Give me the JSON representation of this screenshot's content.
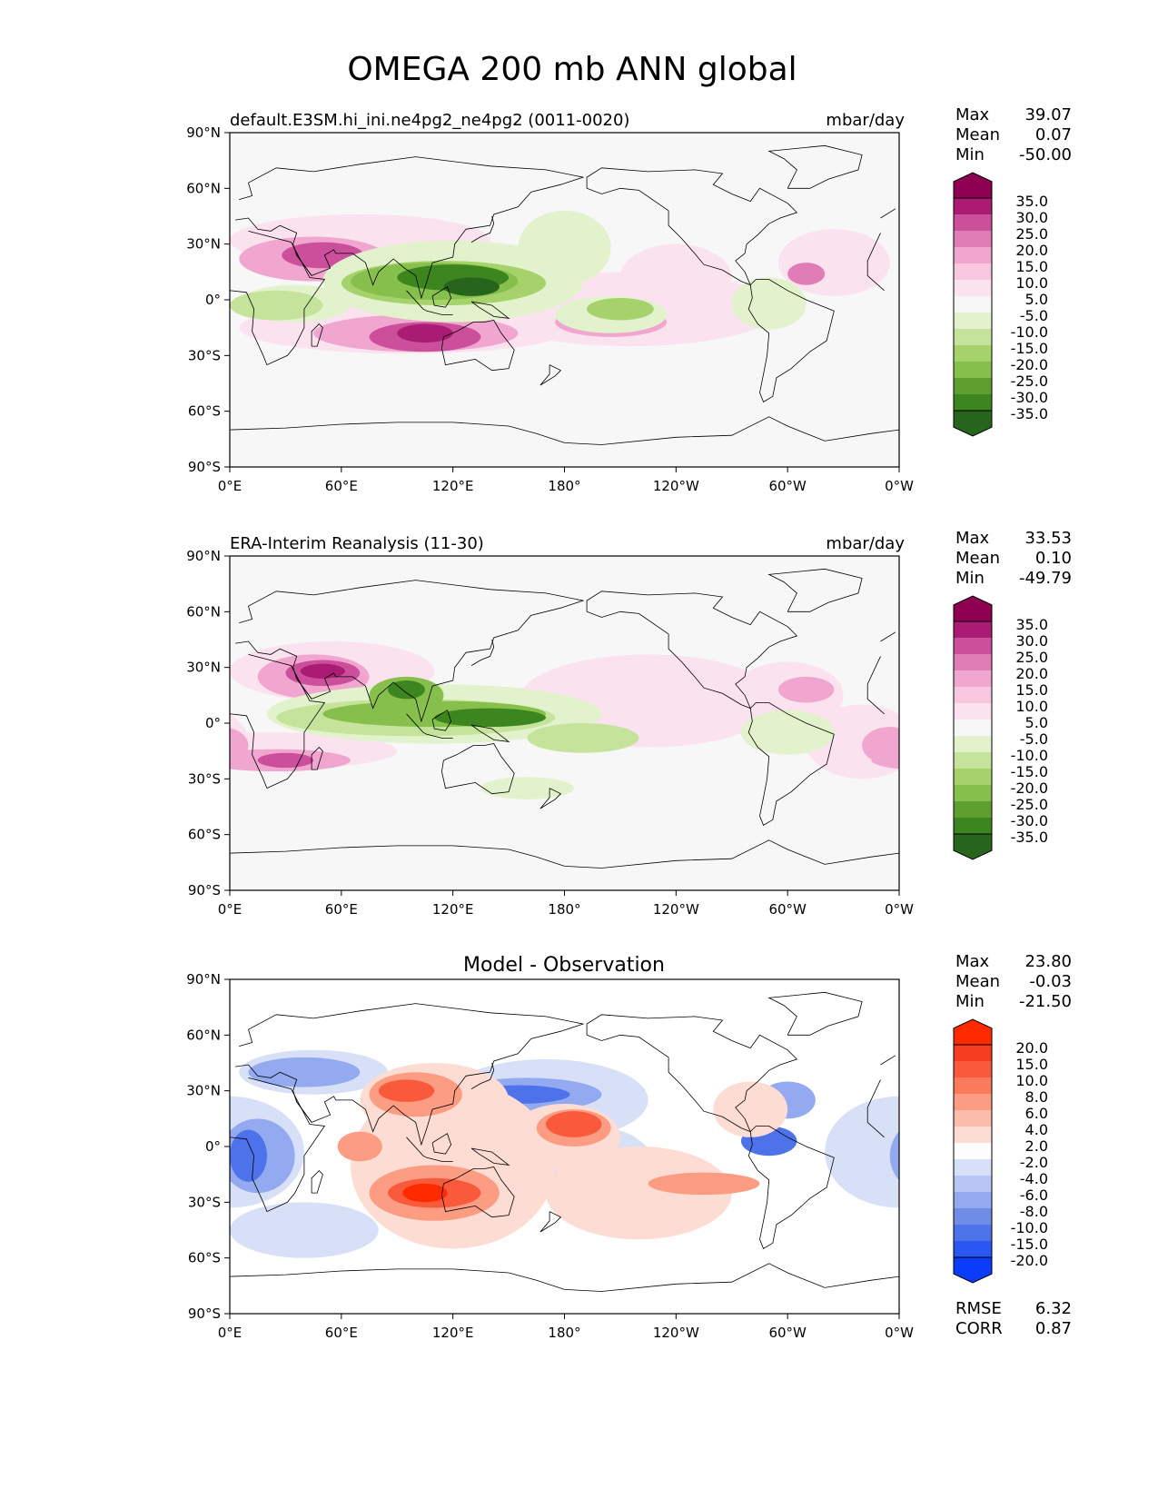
{
  "title": "OMEGA 200 mb ANN global",
  "x_ticks": [
    "0°E",
    "60°E",
    "120°E",
    "180°",
    "120°W",
    "60°W",
    "0°W"
  ],
  "y_ticks": [
    "90°N",
    "60°N",
    "30°N",
    "0°",
    "30°S",
    "60°S",
    "90°S"
  ],
  "panels": [
    {
      "left_title": "default.E3SM.hi_ini.ne4pg2_ne4pg2 (0011-0020)",
      "right_title": "mbar/day",
      "center_title": "",
      "stats": {
        "max_label": "Max",
        "max": "39.07",
        "mean_label": "Mean",
        "mean": "0.07",
        "min_label": "Min",
        "min": "-50.00"
      },
      "colorbar": {
        "colors": [
          "#27641c",
          "#3d861f",
          "#5f9f2f",
          "#86bf4c",
          "#a5d26a",
          "#c5e39b",
          "#e1f2cc",
          "#f6f6f6",
          "#fbe2ef",
          "#f7c7e0",
          "#f0a6cf",
          "#e07cb6",
          "#cb4f9a",
          "#aa1c73",
          "#8e0152"
        ],
        "labels": [
          "35.0",
          "30.0",
          "25.0",
          "20.0",
          "15.0",
          "10.0",
          "5.0",
          "-5.0",
          "-10.0",
          "-15.0",
          "-20.0",
          "-25.0",
          "-30.0",
          "-35.0"
        ]
      }
    },
    {
      "left_title": "ERA-Interim Reanalysis (11-30)",
      "right_title": "mbar/day",
      "center_title": "",
      "stats": {
        "max_label": "Max",
        "max": "33.53",
        "mean_label": "Mean",
        "mean": "0.10",
        "min_label": "Min",
        "min": "-49.79"
      },
      "colorbar": {
        "colors": [
          "#27641c",
          "#3d861f",
          "#5f9f2f",
          "#86bf4c",
          "#a5d26a",
          "#c5e39b",
          "#e1f2cc",
          "#f6f6f6",
          "#fbe2ef",
          "#f7c7e0",
          "#f0a6cf",
          "#e07cb6",
          "#cb4f9a",
          "#aa1c73",
          "#8e0152"
        ],
        "labels": [
          "35.0",
          "30.0",
          "25.0",
          "20.0",
          "15.0",
          "10.0",
          "5.0",
          "-5.0",
          "-10.0",
          "-15.0",
          "-20.0",
          "-25.0",
          "-30.0",
          "-35.0"
        ]
      }
    },
    {
      "left_title": "",
      "right_title": "",
      "center_title": "Model - Observation",
      "stats": {
        "max_label": "Max",
        "max": "23.80",
        "mean_label": "Mean",
        "mean": "-0.03",
        "min_label": "Min",
        "min": "-21.50"
      },
      "colorbar": {
        "colors": [
          "#0a3cfa",
          "#2a56f2",
          "#4d72ea",
          "#6f8de6",
          "#94aaf0",
          "#b7c6f5",
          "#d8e0f8",
          "#fdfdfd",
          "#fddcd3",
          "#fcbcab",
          "#fb9c83",
          "#fa7a5c",
          "#f95a3c",
          "#f53d22",
          "#ff2a00"
        ],
        "labels": [
          "20.0",
          "15.0",
          "10.0",
          "8.0",
          "6.0",
          "4.0",
          "2.0",
          "-2.0",
          "-4.0",
          "-6.0",
          "-8.0",
          "-10.0",
          "-15.0",
          "-20.0"
        ]
      },
      "rmse_label": "RMSE",
      "rmse": "6.32",
      "corr_label": "CORR",
      "corr": "0.87"
    }
  ],
  "colors": {
    "map_bg_fields": "#f7f7f7",
    "map_bg_diff": "#ffffff",
    "coastline": "#000000"
  }
}
